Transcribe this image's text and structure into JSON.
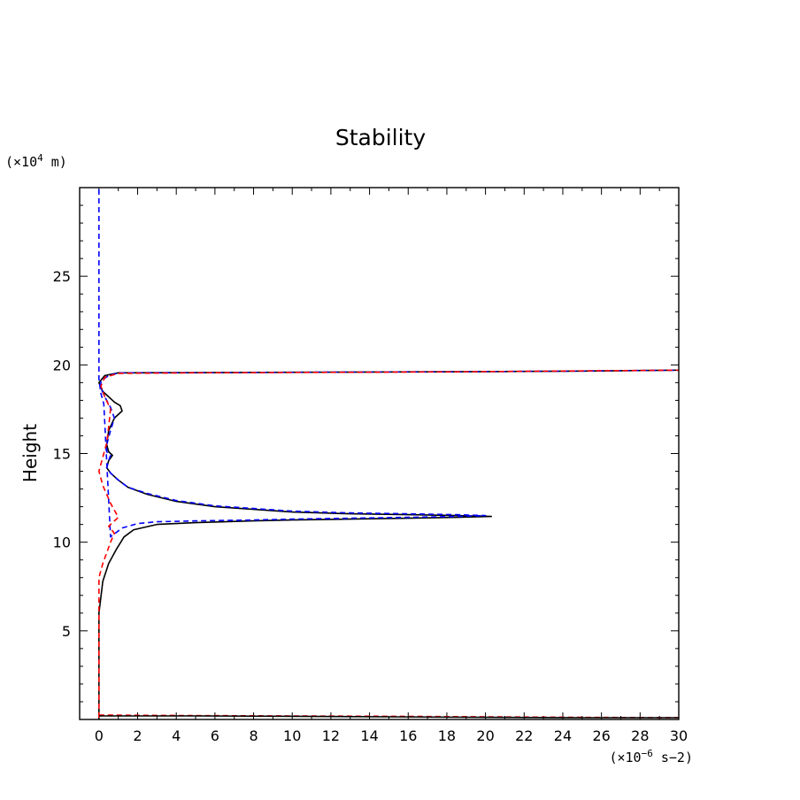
{
  "chart_data": {
    "type": "line",
    "title": "Stability",
    "xlabel": "",
    "ylabel": "Height",
    "x_unit": {
      "prefix": "(×10",
      "exponent": "−6",
      "suffix": " s−2)"
    },
    "y_unit": {
      "prefix": "(×10",
      "exponent": "4",
      "suffix": " m)"
    },
    "xlim": [
      -1,
      30
    ],
    "ylim": [
      0,
      30
    ],
    "x_ticks": [
      0,
      2,
      4,
      6,
      8,
      10,
      12,
      14,
      16,
      18,
      20,
      22,
      24,
      26,
      28,
      30
    ],
    "x_tick_labels": [
      "0",
      "2",
      "4",
      "6",
      "8",
      "10",
      "12",
      "14",
      "16",
      "18",
      "20",
      "22",
      "24",
      "26",
      "28",
      "30"
    ],
    "y_ticks": [
      5,
      10,
      15,
      20,
      25
    ],
    "y_tick_labels": [
      "5",
      "10",
      "15",
      "20",
      "25"
    ],
    "grid": false,
    "colors": {
      "series_1": "#000000",
      "series_2": "#0000ff",
      "series_3": "#ff0000"
    },
    "series": [
      {
        "color": "#000000",
        "dash": "solid",
        "x": [
          0.0,
          0.0,
          0.2,
          0.5,
          0.9,
          1.3,
          1.8,
          3,
          5,
          8,
          10,
          13,
          16,
          18.5,
          20.3,
          18.5,
          16,
          13,
          10,
          8,
          6,
          4,
          2.5,
          1.5,
          1.0,
          0.6,
          0.4,
          0.5,
          0.7,
          0.5,
          0.4,
          0.5,
          0.8,
          1.2,
          1.1,
          0.8,
          0.5,
          0.2,
          0.0,
          0.3,
          1.0,
          5,
          10,
          15,
          20,
          25,
          30
        ],
        "y": [
          0,
          6.0,
          7.8,
          8.8,
          9.6,
          10.3,
          10.7,
          11.0,
          11.1,
          11.2,
          11.25,
          11.3,
          11.35,
          11.4,
          11.45,
          11.5,
          11.55,
          11.6,
          11.7,
          11.85,
          12.0,
          12.3,
          12.7,
          13.1,
          13.5,
          13.9,
          14.2,
          14.6,
          14.9,
          15.1,
          15.5,
          16.3,
          17.0,
          17.4,
          17.7,
          17.9,
          18.2,
          18.5,
          19.0,
          19.4,
          19.55,
          19.56,
          19.58,
          19.6,
          19.62,
          19.65,
          19.7
        ]
      },
      {
        "color": "#0000ff",
        "dash": "dashed",
        "x": [
          0.0,
          0.0,
          0.1,
          0.25,
          0.6,
          1.2,
          2,
          3,
          5,
          8,
          10,
          13,
          16,
          18.5,
          20.0,
          18.5,
          16,
          13,
          10,
          8,
          6,
          4,
          2.5,
          1.5,
          1.0,
          0.6,
          0.4,
          0.5,
          0.6,
          0.4,
          0.4,
          0.6,
          0.8,
          0.6,
          0.3,
          0.1,
          0.1,
          0.5,
          1.0,
          5,
          10,
          15,
          20,
          25,
          30
        ],
        "y": [
          29.9,
          19.2,
          18.4,
          17.8,
          10.3,
          10.8,
          11.05,
          11.15,
          11.2,
          11.25,
          11.3,
          11.35,
          11.4,
          11.45,
          11.5,
          11.55,
          11.6,
          11.65,
          11.75,
          11.9,
          12.05,
          12.35,
          12.75,
          13.1,
          13.5,
          13.9,
          14.2,
          14.6,
          14.9,
          15.1,
          15.5,
          16.3,
          17.0,
          17.6,
          18.2,
          18.7,
          19.1,
          19.4,
          19.55,
          19.56,
          19.58,
          19.6,
          19.62,
          19.65,
          19.7
        ]
      },
      {
        "color": "#ff0000",
        "dash": "dashed",
        "x": [
          0.0,
          0.0,
          0.2,
          0.4,
          0.6,
          0.8,
          0.5,
          1.0,
          0.6,
          0.2,
          0.0,
          0.2,
          0.4,
          0.5,
          0.6,
          0.3,
          0.1,
          0.3,
          1.0,
          5,
          10,
          15,
          20,
          25,
          30
        ],
        "y": [
          0.1,
          8.0,
          8.8,
          9.4,
          10.0,
          10.5,
          10.9,
          11.4,
          12.2,
          13.2,
          14.0,
          14.8,
          15.6,
          16.5,
          17.5,
          18.2,
          18.8,
          19.3,
          19.52,
          19.55,
          19.57,
          19.59,
          19.62,
          19.66,
          19.7
        ]
      },
      {
        "color": "#ff0000",
        "dash": "dashed",
        "x": [
          0,
          5,
          10,
          15,
          20,
          25,
          30
        ],
        "y": [
          0.25,
          0.22,
          0.2,
          0.18,
          0.15,
          0.12,
          0.1
        ]
      },
      {
        "color": "#000000",
        "dash": "solid",
        "x": [
          0,
          5,
          10,
          15,
          20,
          25,
          30
        ],
        "y": [
          0.2,
          0.2,
          0.18,
          0.15,
          0.12,
          0.1,
          0.1
        ]
      }
    ]
  }
}
